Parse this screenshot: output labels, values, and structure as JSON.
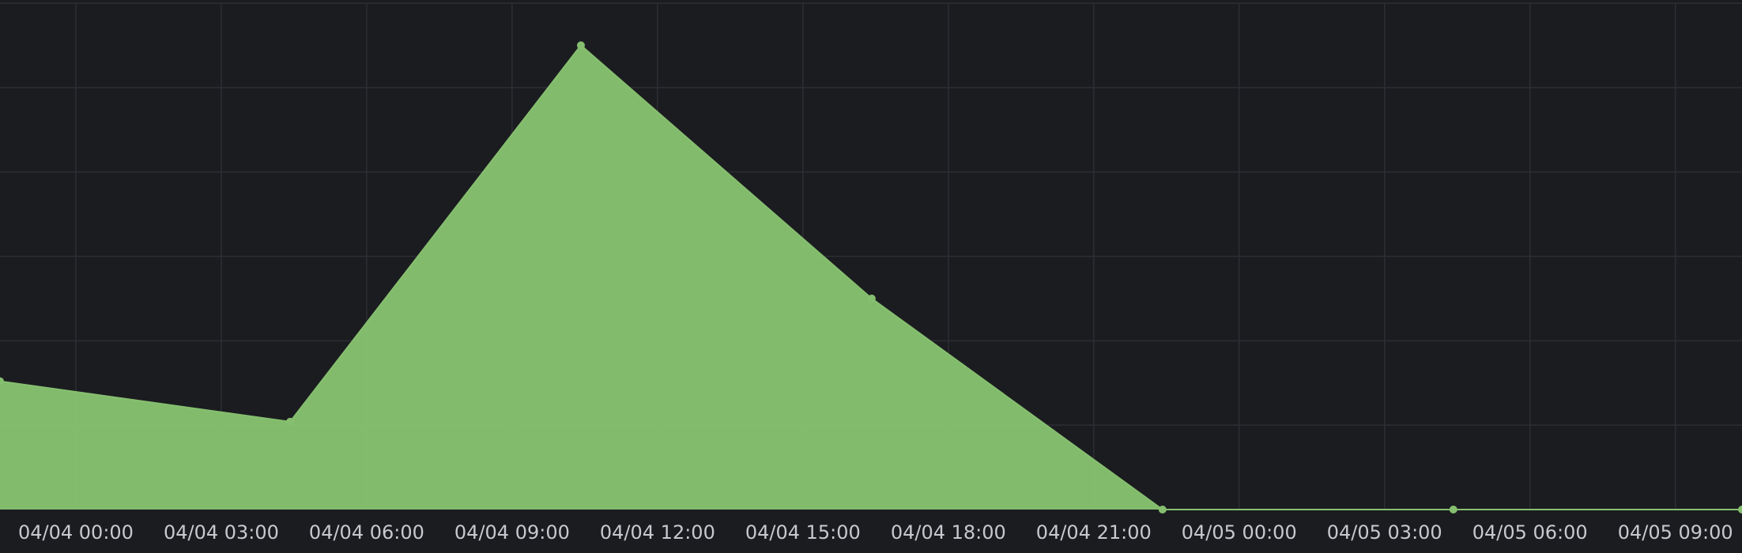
{
  "chart_data": {
    "type": "area",
    "title": "",
    "xlabel": "",
    "ylabel": "",
    "x_unit": "hours from 04/04 00:00",
    "x_tick_labels": [
      "04/04 00:00",
      "04/04 03:00",
      "04/04 06:00",
      "04/04 09:00",
      "04/04 12:00",
      "04/04 15:00",
      "04/04 18:00",
      "04/04 21:00",
      "04/05 00:00",
      "04/05 03:00",
      "04/05 06:00",
      "04/05 09:00"
    ],
    "x_tick_values": [
      0,
      3,
      6,
      9,
      12,
      15,
      18,
      21,
      24,
      27,
      30,
      33
    ],
    "xlim": [
      -1.565,
      34.375
    ],
    "ylim": [
      0,
      6
    ],
    "y_gridlines": [
      1,
      2,
      3,
      4,
      5,
      6
    ],
    "y_tick_labels_visible": false,
    "grid": true,
    "legend": "none",
    "series": [
      {
        "color": "#86bf6f",
        "points": [
          {
            "x": -1.565,
            "y": 1.52
          },
          {
            "x": 4.42,
            "y": 1.04
          },
          {
            "x": 10.42,
            "y": 5.5
          },
          {
            "x": 16.42,
            "y": 2.5
          },
          {
            "x": 22.42,
            "y": 0
          },
          {
            "x": 28.42,
            "y": 0
          },
          {
            "x": 34.375,
            "y": 0
          }
        ]
      }
    ]
  }
}
